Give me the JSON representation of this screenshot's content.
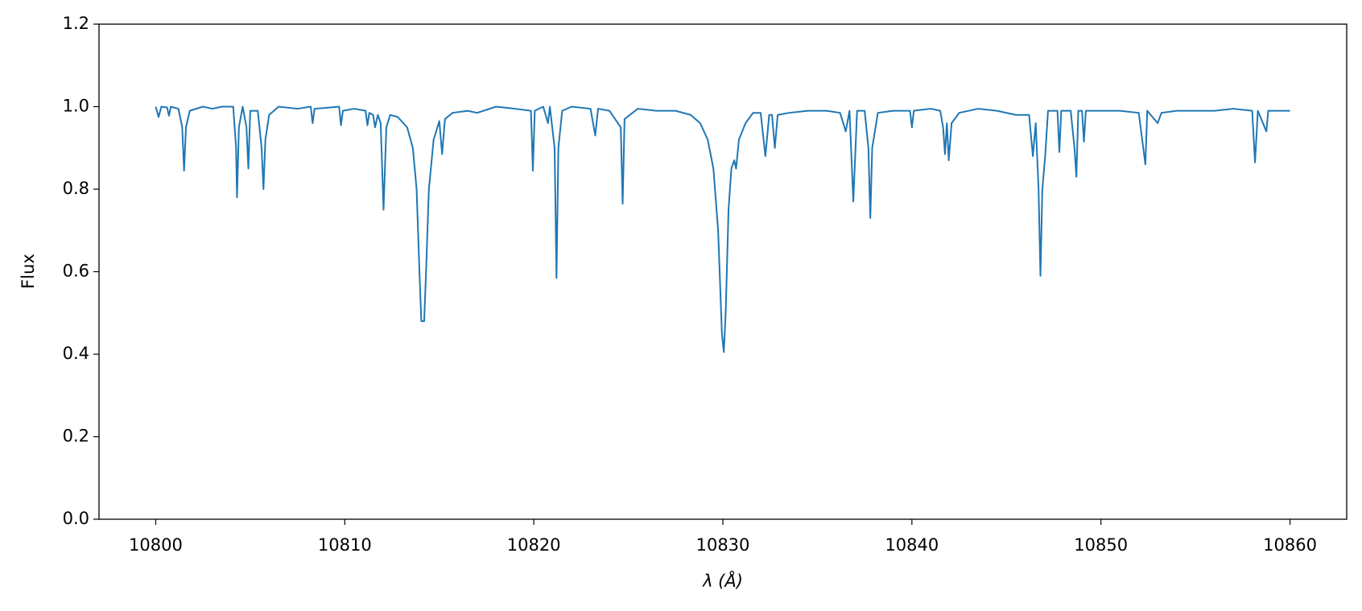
{
  "chart_data": {
    "type": "line",
    "xlabel": "λ (Å)",
    "ylabel": "Flux",
    "xlim": [
      10797,
      10863
    ],
    "ylim": [
      0,
      1.2
    ],
    "xticks": [
      10800,
      10810,
      10820,
      10830,
      10840,
      10850,
      10860
    ],
    "yticks": [
      {
        "value": 0,
        "label": "0.0"
      },
      0.2,
      0.4,
      0.6,
      0.8,
      {
        "value": 1,
        "label": "1.0"
      },
      1.2
    ],
    "grid": false,
    "series": [
      {
        "color": "#1f77b4",
        "x": [
          10800.0,
          10800.15,
          10800.3,
          10800.6,
          10800.7,
          10800.8,
          10801.2,
          10801.4,
          10801.5,
          10801.6,
          10801.8,
          10802.5,
          10803.0,
          10803.5,
          10804.1,
          10804.25,
          10804.3,
          10804.4,
          10804.6,
          10804.8,
          10804.9,
          10805.0,
          10805.4,
          10805.6,
          10805.7,
          10805.8,
          10806.0,
          10806.5,
          10807.5,
          10808.2,
          10808.3,
          10808.4,
          10809.0,
          10809.7,
          10809.8,
          10809.9,
          10810.5,
          10811.1,
          10811.2,
          10811.3,
          10811.5,
          10811.6,
          10811.75,
          10811.9,
          10812.05,
          10812.2,
          10812.4,
          10812.8,
          10813.1,
          10813.3,
          10813.6,
          10813.8,
          10813.95,
          10814.05,
          10814.2,
          10814.3,
          10814.45,
          10814.7,
          10815.0,
          10815.15,
          10815.3,
          10815.7,
          10816.5,
          10817.0,
          10818.0,
          10819.0,
          10819.85,
          10819.95,
          10820.05,
          10820.5,
          10820.75,
          10820.85,
          10821.1,
          10821.2,
          10821.3,
          10821.5,
          10822.0,
          10823.0,
          10823.25,
          10823.4,
          10824.0,
          10824.6,
          10824.7,
          10824.8,
          10825.5,
          10826.5,
          10827.5,
          10828.3,
          10828.8,
          10829.2,
          10829.5,
          10829.75,
          10829.95,
          10830.05,
          10830.15,
          10830.3,
          10830.45,
          10830.6,
          10830.7,
          10830.85,
          10831.2,
          10831.6,
          10832.0,
          10832.25,
          10832.45,
          10832.6,
          10832.75,
          10832.9,
          10833.5,
          10834.5,
          10835.5,
          10836.2,
          10836.5,
          10836.7,
          10836.9,
          10837.1,
          10837.5,
          10837.7,
          10837.8,
          10837.9,
          10838.2,
          10839.0,
          10839.9,
          10840.0,
          10840.1,
          10841.0,
          10841.5,
          10841.65,
          10841.75,
          10841.85,
          10841.95,
          10842.1,
          10842.5,
          10843.5,
          10844.5,
          10845.5,
          10846.2,
          10846.4,
          10846.55,
          10846.7,
          10846.8,
          10846.9,
          10847.05,
          10847.2,
          10847.7,
          10847.8,
          10847.9,
          10848.4,
          10848.6,
          10848.7,
          10848.8,
          10849.0,
          10849.1,
          10849.2,
          10850.0,
          10851.0,
          10852.0,
          10852.35,
          10852.45,
          10853.0,
          10853.2,
          10854.0,
          10855.0,
          10856.0,
          10857.0,
          10858.0,
          10858.15,
          10858.3,
          10858.75,
          10858.85,
          10859.5,
          10860.0
        ],
        "values": [
          1.0,
          0.975,
          1.0,
          0.998,
          0.978,
          1.0,
          0.995,
          0.95,
          0.845,
          0.95,
          0.99,
          1.0,
          0.995,
          1.0,
          1.0,
          0.9,
          0.78,
          0.95,
          1.0,
          0.95,
          0.85,
          0.99,
          0.99,
          0.9,
          0.8,
          0.92,
          0.98,
          1.0,
          0.995,
          1.0,
          0.96,
          0.995,
          0.997,
          1.0,
          0.955,
          0.99,
          0.995,
          0.99,
          0.955,
          0.985,
          0.98,
          0.95,
          0.98,
          0.96,
          0.75,
          0.95,
          0.98,
          0.975,
          0.96,
          0.95,
          0.9,
          0.8,
          0.6,
          0.48,
          0.48,
          0.6,
          0.8,
          0.92,
          0.965,
          0.885,
          0.97,
          0.985,
          0.99,
          0.985,
          1.0,
          0.995,
          0.99,
          0.845,
          0.99,
          1.0,
          0.96,
          1.0,
          0.9,
          0.585,
          0.9,
          0.99,
          1.0,
          0.995,
          0.93,
          0.995,
          0.99,
          0.95,
          0.765,
          0.97,
          0.995,
          0.99,
          0.99,
          0.98,
          0.96,
          0.92,
          0.85,
          0.7,
          0.45,
          0.405,
          0.5,
          0.75,
          0.85,
          0.87,
          0.85,
          0.92,
          0.96,
          0.985,
          0.985,
          0.88,
          0.98,
          0.98,
          0.9,
          0.98,
          0.985,
          0.99,
          0.99,
          0.985,
          0.94,
          0.99,
          0.77,
          0.99,
          0.99,
          0.9,
          0.73,
          0.9,
          0.985,
          0.99,
          0.99,
          0.95,
          0.99,
          0.995,
          0.99,
          0.95,
          0.885,
          0.96,
          0.87,
          0.96,
          0.985,
          0.995,
          0.99,
          0.98,
          0.98,
          0.88,
          0.96,
          0.8,
          0.59,
          0.8,
          0.88,
          0.99,
          0.99,
          0.89,
          0.99,
          0.99,
          0.9,
          0.83,
          0.99,
          0.99,
          0.915,
          0.99,
          0.99,
          0.99,
          0.985,
          0.86,
          0.99,
          0.96,
          0.985,
          0.99,
          0.99,
          0.99,
          0.995,
          0.99,
          0.865,
          0.99,
          0.94,
          0.99,
          0.99,
          0.99
        ]
      }
    ]
  }
}
